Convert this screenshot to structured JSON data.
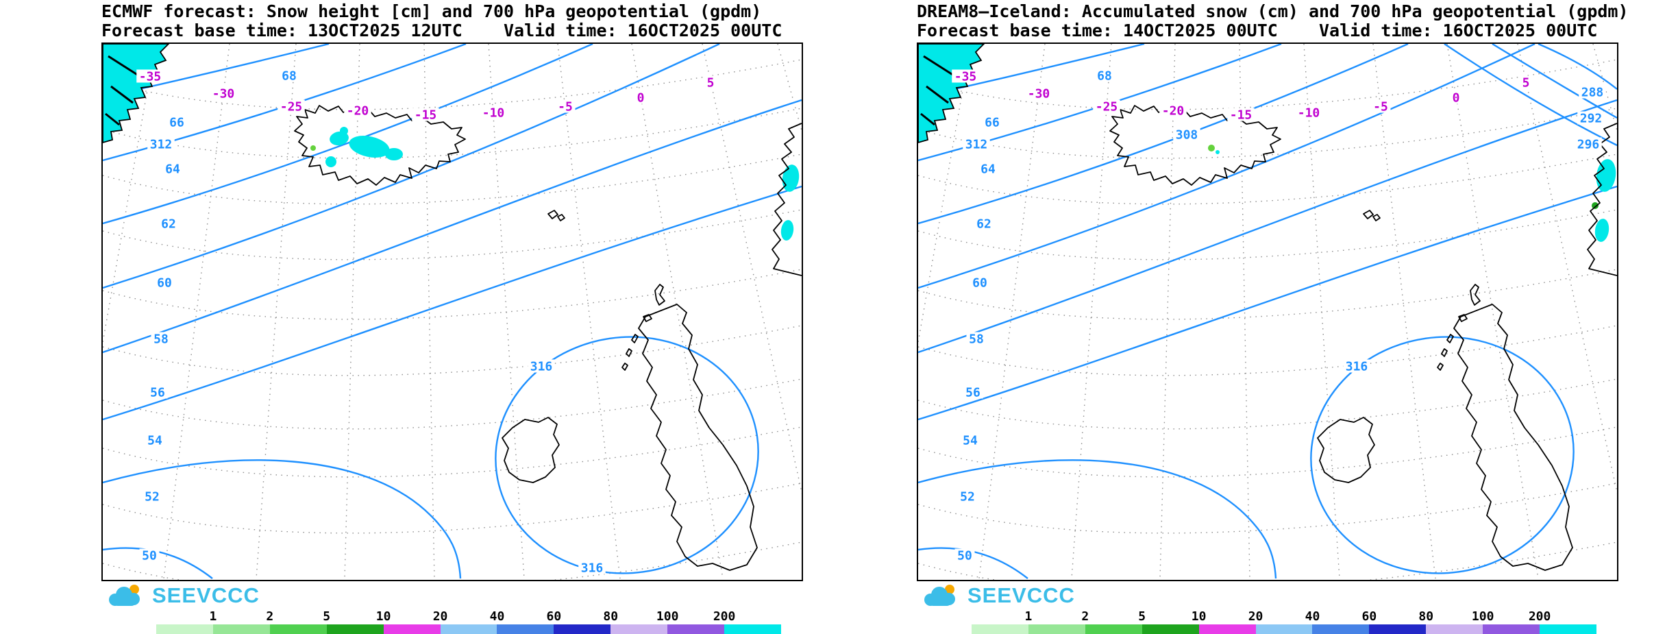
{
  "panels": [
    {
      "title": "ECMWF forecast: Snow height [cm] and 700 hPa geopotential (gpdm)",
      "subtitle": "Forecast base time: 13OCT2025 12UTC    Valid time: 16OCT2025 00UTC",
      "lat_labels": [
        "68",
        "66",
        "64",
        "62",
        "60",
        "58",
        "56",
        "54",
        "52",
        "50"
      ],
      "lon_labels": [
        "-35",
        "-30",
        "-25",
        "-20",
        "-15",
        "-10",
        "-5",
        "0",
        "5"
      ],
      "contour_labels": [
        "312",
        "316",
        "316"
      ]
    },
    {
      "title": "DREAM8–Iceland: Accumulated snow (cm) and 700 hPa geopotential (gpdm)",
      "subtitle": "Forecast base time: 14OCT2025 00UTC    Valid time: 16OCT2025 00UTC",
      "lat_labels": [
        "68",
        "66",
        "64",
        "62",
        "60",
        "58",
        "56",
        "54",
        "52",
        "50"
      ],
      "lon_labels": [
        "-35",
        "-30",
        "-25",
        "-20",
        "-15",
        "-10",
        "-5",
        "0",
        "5"
      ],
      "contour_labels": [
        "312",
        "308",
        "316",
        "288",
        "292",
        "296"
      ]
    }
  ],
  "legend": {
    "labels": [
      "1",
      "2",
      "5",
      "10",
      "20",
      "40",
      "60",
      "80",
      "100",
      "200"
    ],
    "colors": [
      "#c8f5c8",
      "#96e696",
      "#50d050",
      "#1ea41e",
      "#e83ce8",
      "#8cc8f5",
      "#4682e6",
      "#2328c8",
      "#cdb4f0",
      "#9158e0",
      "#00e8e8"
    ]
  },
  "logo": {
    "text": "SEEVCCC"
  },
  "colors": {
    "contour": "#1e90ff",
    "geo_label": "#1e90ff",
    "lon_label": "#c000d0",
    "snow": "#00e8e8",
    "green_light": "#64d23c",
    "green_dark": "#1ea41e",
    "coast": "#000000",
    "grid": "#8c8c8c",
    "logo": "#3bbde8",
    "sun": "#f7a800"
  }
}
